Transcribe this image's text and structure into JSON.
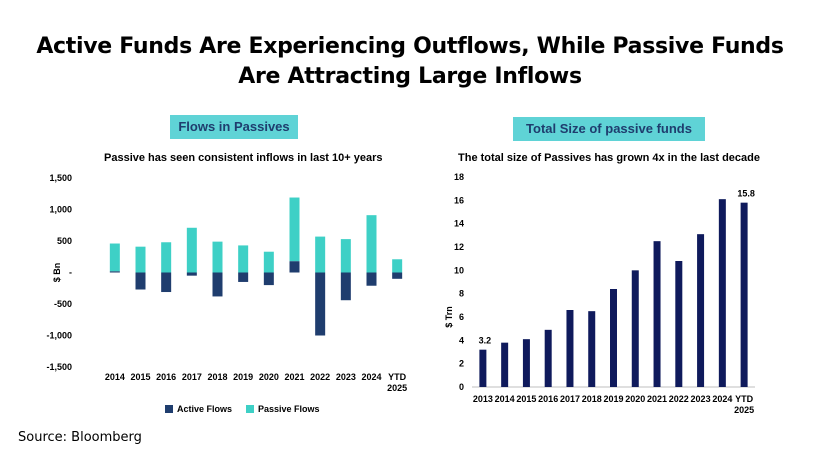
{
  "title_line1": "Active Funds Are Experiencing Outflows, While Passive Funds",
  "title_line2": "Are Attracting Large Inflows",
  "source": "Source: Bloomberg",
  "colors": {
    "active": "#1f3d6e",
    "passive": "#3ed0c6",
    "bar": "#0f1a5c",
    "tag_bg": "#5fd3d6",
    "tag_text": "#1f3d6e"
  },
  "chart_data": [
    {
      "type": "bar",
      "panel_label": "Flows in Passives",
      "title": "Passive has seen consistent inflows in last 10+ years",
      "ylabel": "$ Bn",
      "xlabel": "",
      "ylim": [
        -1500,
        1500
      ],
      "yticks": [
        1500,
        1000,
        500,
        0,
        -500,
        -1000,
        -1500
      ],
      "ytick_labels": [
        "1,500",
        "1,000",
        "500",
        "-",
        "-500",
        "-1,000",
        "-1,500"
      ],
      "categories": [
        "2014",
        "2015",
        "2016",
        "2017",
        "2018",
        "2019",
        "2020",
        "2021",
        "2022",
        "2023",
        "2024",
        "YTD 2025"
      ],
      "series": [
        {
          "name": "Active Flows",
          "values": [
            20,
            -270,
            -310,
            -50,
            -380,
            -150,
            -200,
            180,
            -1000,
            -440,
            -210,
            -100
          ]
        },
        {
          "name": "Passive Flows",
          "values": [
            440,
            410,
            480,
            710,
            490,
            430,
            330,
            1010,
            570,
            530,
            910,
            210
          ]
        }
      ],
      "legend_position": "bottom"
    },
    {
      "type": "bar",
      "panel_label": "Total Size of passive funds",
      "title": "The total size of Passives has grown 4x in the last decade",
      "ylabel": "$ Trn",
      "xlabel": "",
      "ylim": [
        0,
        18
      ],
      "yticks": [
        0,
        2,
        4,
        6,
        8,
        10,
        12,
        14,
        16,
        18
      ],
      "categories": [
        "2013",
        "2014",
        "2015",
        "2016",
        "2017",
        "2018",
        "2019",
        "2020",
        "2021",
        "2022",
        "2023",
        "2024",
        "YTD 2025"
      ],
      "values": [
        3.2,
        3.8,
        4.1,
        4.9,
        6.6,
        6.5,
        8.4,
        10.0,
        12.5,
        10.8,
        13.1,
        16.1,
        15.8
      ],
      "data_labels": {
        "0": "3.2",
        "12": "15.8"
      }
    }
  ]
}
